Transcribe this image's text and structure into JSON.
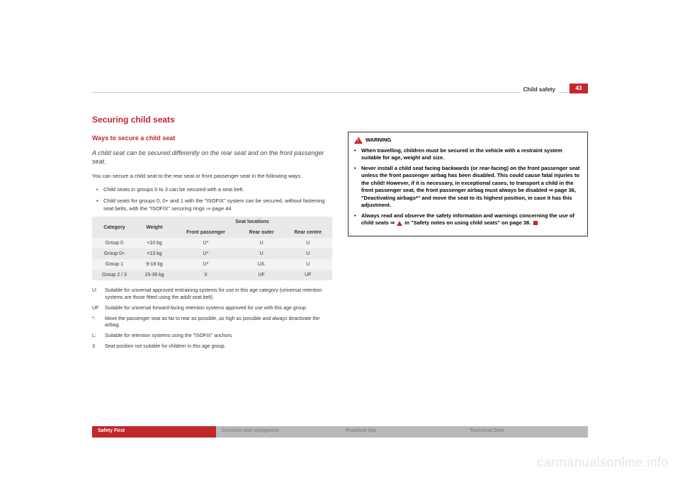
{
  "header": {
    "breadcrumb": "Child safety",
    "page_num": "43"
  },
  "left": {
    "h1": "Securing child seats",
    "h2": "Ways to secure a child seat",
    "lead": "A child seat can be secured differently on the rear seat and on the front passenger seat.",
    "intro": "You can secure a child seat to the rear seat or front passenger seat in the following ways:",
    "b1": "Child seats in groups 0 to 3 can be secured with a seat belt.",
    "b2": "Child seats for groups 0, 0+ and 1 with the \"ISOFIX\" system can be secured, without fastening seat belts, with the \"ISOFIX\" securing rings ⇒ page 44.",
    "table": {
      "super": "Seat locations",
      "cols": [
        "Category",
        "Weight",
        "Front passenger",
        "Rear outer",
        "Rear centre"
      ],
      "rows": [
        [
          "Group 0",
          "<10 kg",
          "U*",
          "U",
          "U"
        ],
        [
          "Group 0+",
          "<13 kg",
          "U*",
          "U",
          "U"
        ],
        [
          "Group 1",
          "9-18 kg",
          "U*",
          "U/L",
          "U"
        ],
        [
          "Group 2 / 3",
          "15-36 kg",
          "X",
          "UF",
          "UF"
        ]
      ]
    },
    "legend": {
      "U": "Suitable for universal approved restraining systems for use in this age category (universal retention systems are those fitted using the adult seat belt).",
      "UF": "Suitable for universal forward-facing retention systems approved for use with this age group.",
      "star": "Move the passenger seat as far to rear as possible, as high as possible and always deactivate the airbag.",
      "L": "Suitable for retention systems using the \"ISOFIX\" anchors",
      "X": "Seat position not suitable for children in this age group."
    }
  },
  "warning": {
    "title": "WARNING",
    "w1": "When travelling, children must be secured in the vehicle with a restraint system suitable for age, weight and size.",
    "w2": "Never install a child seat facing backwards (or rear-facing) on the front passenger seat unless the front passenger airbag has been disabled. This could cause fatal injuries to the child! However, if it is necessary, in exceptional cases, to transport a child in the front passenger seat, the front passenger airbag must always be disabled ⇒ page 36, \"Deactivating airbags*\" and move the seat to its highest position, in case it has this adjustment.",
    "w3a": "Always read and observe the safety information and warnings concerning the use of child seats ⇒ ",
    "w3b": " in \"Safety notes on using child seats\" on page 38."
  },
  "footer": {
    "s1": "Safety First",
    "s2": "Controls and equipment",
    "s3": "Practical tips",
    "s4": "Technical Data"
  },
  "watermark": "carmanualsonline.info"
}
